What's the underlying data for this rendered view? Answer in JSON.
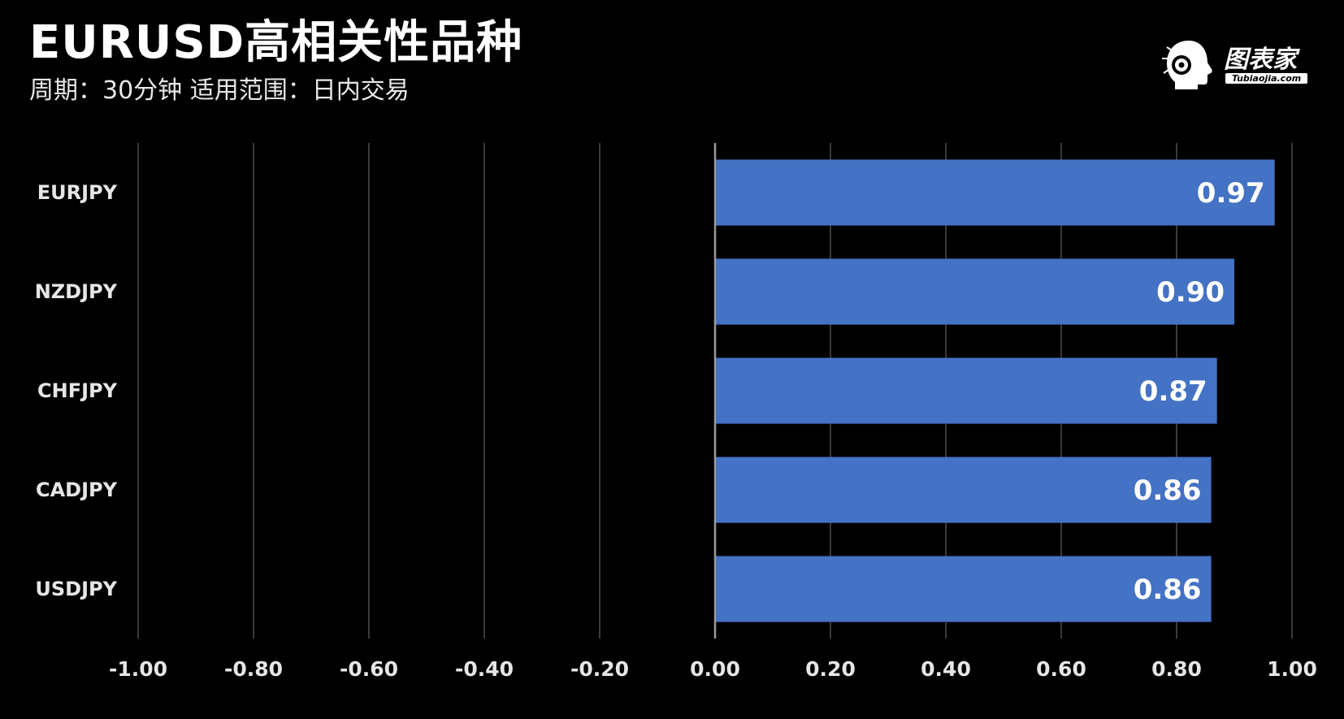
{
  "header": {
    "title": "EURUSD高相关性品种",
    "subtitle": "周期：30分钟  适用范围：日内交易"
  },
  "logo": {
    "text": "图表家",
    "sub": "Tubiaojia.com",
    "icon": "robot-head-icon"
  },
  "colors": {
    "background": "#000000",
    "bar": "#4472c4",
    "grid": "#3a3a3a",
    "zero_axis": "#9a9a9a",
    "text": "#e6e6e6"
  },
  "chart_data": {
    "type": "bar",
    "orientation": "horizontal",
    "title": "EURUSD高相关性品种",
    "subtitle": "周期：30分钟  适用范围：日内交易",
    "categories": [
      "EURJPY",
      "NZDJPY",
      "CHFJPY",
      "CADJPY",
      "USDJPY"
    ],
    "values": [
      0.97,
      0.9,
      0.87,
      0.86,
      0.86
    ],
    "value_labels": [
      "0.97",
      "0.90",
      "0.87",
      "0.86",
      "0.86"
    ],
    "xlim": [
      -1.0,
      1.0
    ],
    "xticks": [
      -1.0,
      -0.8,
      -0.6,
      -0.4,
      -0.2,
      0.0,
      0.2,
      0.4,
      0.6,
      0.8,
      1.0
    ],
    "xtick_labels": [
      "-1.00",
      "-0.80",
      "-0.60",
      "-0.40",
      "-0.20",
      "0.00",
      "0.20",
      "0.40",
      "0.60",
      "0.80",
      "1.00"
    ],
    "grid": true,
    "legend": "none"
  }
}
